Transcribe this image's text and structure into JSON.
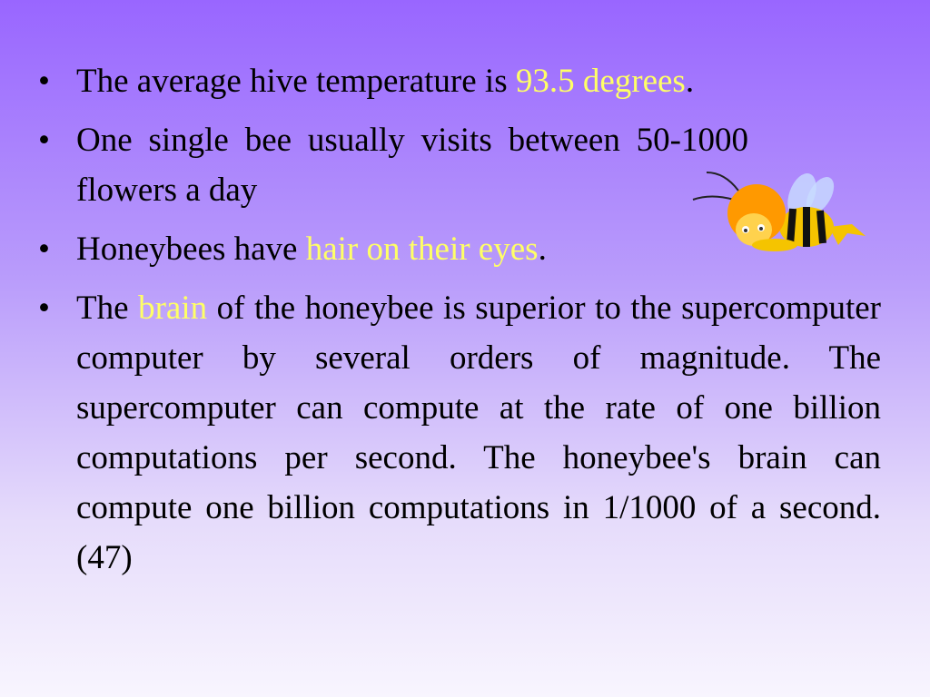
{
  "bullets": [
    {
      "parts": [
        "The average hive temperature is ",
        "93.5 degrees",
        "."
      ]
    },
    {
      "parts": [
        "One single bee usually visits between 50-1000 flowers a day"
      ]
    },
    {
      "parts": [
        "Honeybees have ",
        "hair on their eyes",
        "."
      ]
    },
    {
      "parts": [
        "The ",
        "brain",
        " of the honeybee is superior to the supercomputer computer by several orders of magnitude.  The supercomputer can compute at the rate of one billion computations per second.  The honeybee's brain can compute one billion computations in 1/1000 of a second.(47)"
      ]
    }
  ],
  "colors": {
    "highlight": "#ffff66",
    "background_top": "#9966ff",
    "background_bottom": "#f8f5fe"
  },
  "image": {
    "icon": "cartoon-bee-icon"
  }
}
